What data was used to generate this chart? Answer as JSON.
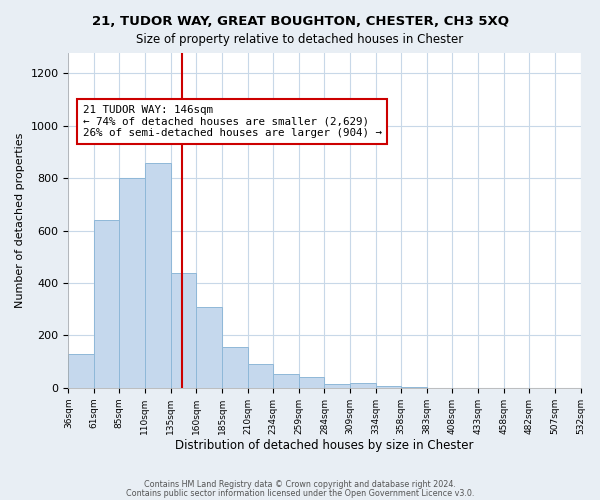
{
  "title1": "21, TUDOR WAY, GREAT BOUGHTON, CHESTER, CH3 5XQ",
  "title2": "Size of property relative to detached houses in Chester",
  "xlabel": "Distribution of detached houses by size in Chester",
  "ylabel": "Number of detached properties",
  "bins": [
    36,
    61,
    85,
    110,
    135,
    160,
    185,
    210,
    234,
    259,
    284,
    309,
    334,
    358,
    383,
    408,
    433,
    458,
    482,
    507,
    532
  ],
  "counts": [
    130,
    640,
    800,
    860,
    440,
    310,
    155,
    90,
    52,
    42,
    15,
    20,
    7,
    3,
    0,
    0,
    0,
    0,
    0,
    0
  ],
  "bar_color": "#c5d8ed",
  "bar_edge_color": "#8fb8d8",
  "property_size": 146,
  "vline_color": "#cc0000",
  "annotation_line1": "21 TUDOR WAY: 146sqm",
  "annotation_line2": "← 74% of detached houses are smaller (2,629)",
  "annotation_line3": "26% of semi-detached houses are larger (904) →",
  "annotation_box_color": "#ffffff",
  "annotation_box_edge": "#cc0000",
  "ylim": [
    0,
    1280
  ],
  "yticks": [
    0,
    200,
    400,
    600,
    800,
    1000,
    1200
  ],
  "footer1": "Contains HM Land Registry data © Crown copyright and database right 2024.",
  "footer2": "Contains public sector information licensed under the Open Government Licence v3.0.",
  "bg_color": "#e8eef4",
  "plot_bg_color": "#ffffff",
  "grid_color": "#c8d8e8"
}
